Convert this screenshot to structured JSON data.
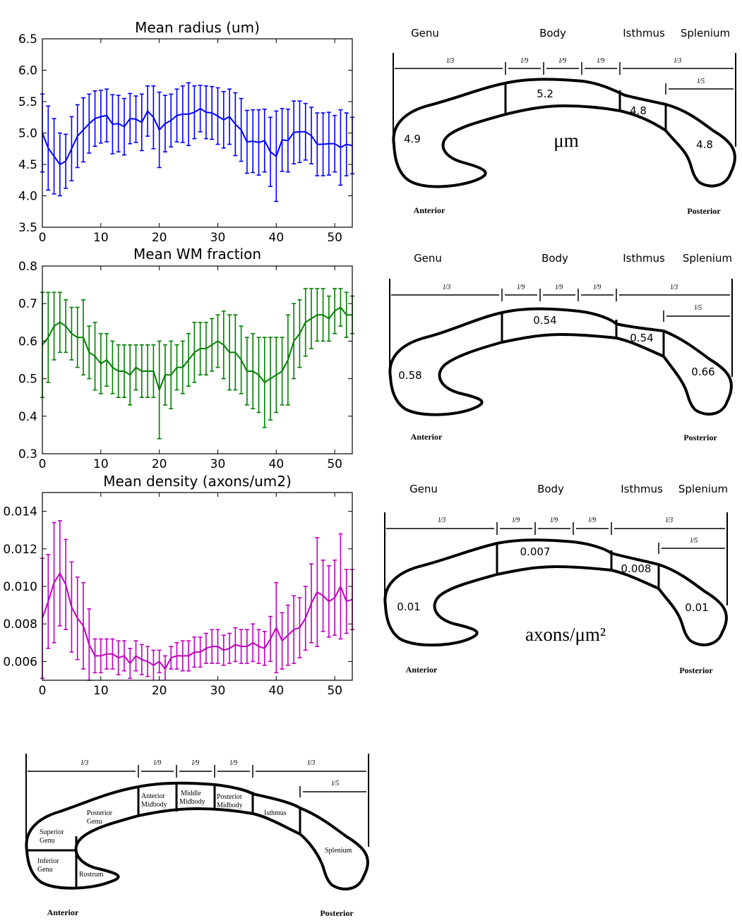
{
  "chart_data": [
    {
      "type": "line",
      "title": "Mean radius (um)",
      "color": "#0000ff",
      "xlim": [
        0,
        53
      ],
      "ylim": [
        3.5,
        6.5
      ],
      "xticks": [
        "0",
        "10",
        "20",
        "30",
        "40",
        "50"
      ],
      "yticks": [
        "3.5",
        "4.0",
        "4.5",
        "5.0",
        "5.5",
        "6.0",
        "6.5"
      ],
      "x": [
        0,
        1,
        2,
        3,
        4,
        5,
        6,
        7,
        8,
        9,
        10,
        11,
        12,
        13,
        14,
        15,
        16,
        17,
        18,
        19,
        20,
        21,
        22,
        23,
        24,
        25,
        26,
        27,
        28,
        29,
        30,
        31,
        32,
        33,
        34,
        35,
        36,
        37,
        38,
        39,
        40,
        41,
        42,
        43,
        44,
        45,
        46,
        47,
        48,
        49,
        50,
        51,
        52,
        53
      ],
      "values": [
        5.0,
        4.76,
        4.63,
        4.5,
        4.55,
        4.75,
        4.95,
        5.05,
        5.15,
        5.23,
        5.26,
        5.28,
        5.14,
        5.15,
        5.1,
        5.23,
        5.22,
        5.17,
        5.35,
        5.25,
        5.05,
        5.15,
        5.2,
        5.28,
        5.3,
        5.3,
        5.33,
        5.39,
        5.33,
        5.32,
        5.27,
        5.21,
        5.26,
        5.14,
        5.05,
        4.86,
        4.87,
        4.85,
        4.88,
        4.7,
        4.63,
        4.89,
        4.88,
        5.01,
        5.02,
        5.02,
        4.96,
        4.82,
        4.82,
        4.83,
        4.83,
        4.77,
        4.82,
        4.8
      ],
      "errors": [
        0.62,
        0.67,
        0.6,
        0.5,
        0.43,
        0.51,
        0.5,
        0.51,
        0.47,
        0.44,
        0.42,
        0.42,
        0.47,
        0.45,
        0.45,
        0.4,
        0.37,
        0.45,
        0.4,
        0.5,
        0.6,
        0.45,
        0.42,
        0.42,
        0.45,
        0.5,
        0.42,
        0.37,
        0.42,
        0.42,
        0.45,
        0.45,
        0.44,
        0.5,
        0.5,
        0.5,
        0.5,
        0.52,
        0.5,
        0.55,
        0.72,
        0.5,
        0.5,
        0.5,
        0.49,
        0.45,
        0.45,
        0.5,
        0.5,
        0.5,
        0.45,
        0.6,
        0.5,
        0.45
      ]
    },
    {
      "type": "line",
      "title": "Mean WM fraction",
      "color": "#008000",
      "xlim": [
        0,
        53
      ],
      "ylim": [
        0.3,
        0.8
      ],
      "xticks": [
        "0",
        "10",
        "20",
        "30",
        "40",
        "50"
      ],
      "yticks": [
        "0.3",
        "0.4",
        "0.5",
        "0.6",
        "0.7",
        "0.8"
      ],
      "x": [
        0,
        1,
        2,
        3,
        4,
        5,
        6,
        7,
        8,
        9,
        10,
        11,
        12,
        13,
        14,
        15,
        16,
        17,
        18,
        19,
        20,
        21,
        22,
        23,
        24,
        25,
        26,
        27,
        28,
        29,
        30,
        31,
        32,
        33,
        34,
        35,
        36,
        37,
        38,
        39,
        40,
        41,
        42,
        43,
        44,
        45,
        46,
        47,
        48,
        49,
        50,
        51,
        52,
        53
      ],
      "values": [
        0.59,
        0.61,
        0.64,
        0.65,
        0.64,
        0.62,
        0.61,
        0.61,
        0.57,
        0.56,
        0.54,
        0.55,
        0.53,
        0.52,
        0.52,
        0.51,
        0.53,
        0.52,
        0.52,
        0.52,
        0.47,
        0.51,
        0.51,
        0.53,
        0.53,
        0.55,
        0.57,
        0.58,
        0.58,
        0.59,
        0.6,
        0.59,
        0.57,
        0.57,
        0.55,
        0.52,
        0.52,
        0.51,
        0.49,
        0.5,
        0.51,
        0.52,
        0.55,
        0.6,
        0.62,
        0.65,
        0.66,
        0.67,
        0.67,
        0.66,
        0.68,
        0.69,
        0.67,
        0.67
      ],
      "errors": [
        0.14,
        0.12,
        0.09,
        0.08,
        0.07,
        0.07,
        0.08,
        0.1,
        0.07,
        0.09,
        0.08,
        0.07,
        0.07,
        0.07,
        0.07,
        0.08,
        0.06,
        0.07,
        0.07,
        0.07,
        0.13,
        0.08,
        0.09,
        0.06,
        0.07,
        0.07,
        0.08,
        0.07,
        0.07,
        0.07,
        0.07,
        0.09,
        0.1,
        0.1,
        0.09,
        0.09,
        0.1,
        0.1,
        0.12,
        0.11,
        0.1,
        0.09,
        0.12,
        0.1,
        0.09,
        0.09,
        0.08,
        0.07,
        0.07,
        0.06,
        0.06,
        0.05,
        0.06,
        0.05
      ]
    },
    {
      "type": "line",
      "title": "Mean density (axons/um2)",
      "color": "#bf00bf",
      "xlim": [
        0,
        53
      ],
      "ylim": [
        0.005,
        0.015
      ],
      "xticks": [
        "0",
        "10",
        "20",
        "30",
        "40",
        "50"
      ],
      "yticks": [
        "0.006",
        "0.008",
        "0.010",
        "0.012",
        "0.014"
      ],
      "x": [
        0,
        1,
        2,
        3,
        4,
        5,
        6,
        7,
        8,
        9,
        10,
        11,
        12,
        13,
        14,
        15,
        16,
        17,
        18,
        19,
        20,
        21,
        22,
        23,
        24,
        25,
        26,
        27,
        28,
        29,
        30,
        31,
        32,
        33,
        34,
        35,
        36,
        37,
        38,
        39,
        40,
        41,
        42,
        43,
        44,
        45,
        46,
        47,
        48,
        49,
        50,
        51,
        52,
        53
      ],
      "values": [
        0.0083,
        0.0092,
        0.0102,
        0.0107,
        0.0101,
        0.0089,
        0.0083,
        0.0079,
        0.0069,
        0.0063,
        0.0063,
        0.0064,
        0.0064,
        0.0062,
        0.0063,
        0.0059,
        0.0063,
        0.0061,
        0.006,
        0.0058,
        0.006,
        0.0056,
        0.0062,
        0.0063,
        0.0063,
        0.0063,
        0.0065,
        0.0065,
        0.0067,
        0.0068,
        0.0068,
        0.0066,
        0.0067,
        0.0069,
        0.0068,
        0.0068,
        0.007,
        0.0068,
        0.0067,
        0.0072,
        0.0078,
        0.0071,
        0.0074,
        0.0077,
        0.0078,
        0.0083,
        0.0091,
        0.0097,
        0.0095,
        0.0092,
        0.0094,
        0.01,
        0.0092,
        0.0093
      ],
      "errors": [
        0.0032,
        0.0025,
        0.0032,
        0.0028,
        0.0024,
        0.0024,
        0.0022,
        0.0023,
        0.0019,
        0.0009,
        0.0009,
        0.0008,
        0.0008,
        0.0009,
        0.0008,
        0.0008,
        0.0008,
        0.0008,
        0.0008,
        0.0008,
        0.0006,
        0.0007,
        0.0006,
        0.0007,
        0.0008,
        0.0008,
        0.0008,
        0.0008,
        0.0008,
        0.0009,
        0.0009,
        0.0008,
        0.0008,
        0.0009,
        0.0009,
        0.0009,
        0.001,
        0.0009,
        0.0009,
        0.0012,
        0.0024,
        0.0015,
        0.0016,
        0.0018,
        0.0016,
        0.0017,
        0.0021,
        0.0029,
        0.0019,
        0.0019,
        0.002,
        0.0028,
        0.0017,
        0.0016
      ]
    }
  ],
  "diagrams": {
    "common": {
      "regions": [
        "Genu",
        "Body",
        "Isthmus",
        "Splenium"
      ],
      "l3": "l/3",
      "l9": "l/9",
      "l5": "l/5",
      "anterior": "Anterior",
      "posterior": "Posterior"
    },
    "radius": {
      "genu": "4.9",
      "body": "5.2",
      "isthmus": "4.8",
      "splenium": "4.8",
      "unit": "μm"
    },
    "wm": {
      "genu": "0.58",
      "body": "0.54",
      "isthmus": "0.54",
      "splenium": "0.66"
    },
    "density": {
      "genu": "0.01",
      "body": "0.007",
      "isthmus": "0.008",
      "splenium": "0.01",
      "unit": "axons/μm²"
    },
    "regions_map": {
      "superior_genu": [
        "Superior",
        "Genu"
      ],
      "inferior_genu": [
        "Inferior",
        "Genu"
      ],
      "posterior_genu": [
        "Posterior",
        "Genu"
      ],
      "rostrum": "Rostrum",
      "anterior_midbody": [
        "Anterior",
        "Midbody"
      ],
      "middle_midbody": [
        "Middle",
        "Midbody"
      ],
      "posterior_midbody": [
        "Posterior",
        "Midbody"
      ],
      "isthmus": "Isthmus",
      "splenium": "Splenium",
      "anterior": "Anterior",
      "posterior": "Posterior"
    }
  }
}
